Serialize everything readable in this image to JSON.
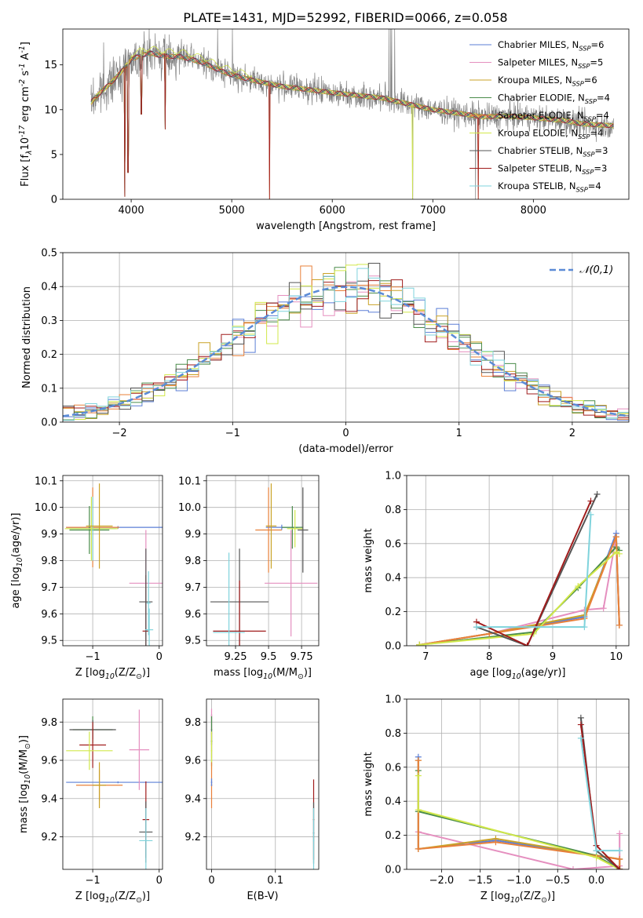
{
  "title": "PLATE=1431, MJD=52992, FIBERID=0066, z=0.058",
  "colors": [
    "#5b7fd6",
    "#e58fbf",
    "#c9a227",
    "#4a8c4a",
    "#e8803a",
    "#d2e84a",
    "#555555",
    "#a01c1c",
    "#7fd3dc"
  ],
  "chart_data": [
    {
      "id": "spectrum",
      "type": "line",
      "xlabel": "wavelength [Angstrom, rest frame]",
      "ylabel": "Flux [f$_\\lambda$10$^{-17}$ erg cm$^{-2}$ s$^{-1}$ A$^{-1}$]",
      "xlim": [
        3320,
        8950
      ],
      "ylim": [
        0,
        19
      ],
      "xticks": [
        4000,
        5000,
        6000,
        7000,
        8000
      ],
      "yticks": [
        0,
        5,
        10,
        15
      ],
      "grid": false,
      "legend_position": "top-right",
      "legend": [
        "Chabrier MILES, N$_{SSP}$=6",
        "Salpeter MILES, N$_{SSP}$=5",
        "Kroupa MILES, N$_{SSP}$=6",
        "Chabrier ELODIE, N$_{SSP}$=4",
        "Salpeter ELODIE, N$_{SSP}$=4",
        "Kroupa ELODIE, N$_{SSP}$=4",
        "Chabrier STELIB, N$_{SSP}$=3",
        "Salpeter STELIB, N$_{SSP}$=3",
        "Kroupa STELIB, N$_{SSP}$=4"
      ],
      "data_color": "#808080",
      "continuum": [
        [
          3600,
          10.8
        ],
        [
          3700,
          12.0
        ],
        [
          3800,
          13.0
        ],
        [
          3900,
          14.2
        ],
        [
          4000,
          15.6
        ],
        [
          4100,
          16.1
        ],
        [
          4200,
          16.3
        ],
        [
          4300,
          16.0
        ],
        [
          4500,
          15.9
        ],
        [
          4700,
          15.3
        ],
        [
          4900,
          14.3
        ],
        [
          5000,
          13.9
        ],
        [
          5200,
          13.3
        ],
        [
          5500,
          12.6
        ],
        [
          6000,
          11.9
        ],
        [
          6500,
          11.3
        ],
        [
          7000,
          10.0
        ],
        [
          7500,
          9.2
        ],
        [
          7700,
          9.3
        ],
        [
          8000,
          9.1
        ],
        [
          8300,
          8.8
        ],
        [
          8500,
          8.4
        ],
        [
          8800,
          8.2
        ]
      ],
      "data_noise_amp": 1.3,
      "model_dips": [
        [
          3934,
          0.3
        ],
        [
          3969,
          3.0
        ],
        [
          4101,
          9.5
        ],
        [
          4340,
          7.8
        ],
        [
          5375,
          0
        ],
        [
          7450,
          0
        ]
      ],
      "data_spikes": [
        [
          3727,
          17.5
        ],
        [
          4861,
          19
        ],
        [
          5007,
          19
        ],
        [
          6563,
          19
        ],
        [
          6583,
          19
        ],
        [
          6590,
          19
        ],
        [
          6620,
          19
        ],
        [
          5376,
          0
        ],
        [
          6800,
          0
        ],
        [
          7425,
          0
        ]
      ]
    },
    {
      "id": "residuals",
      "type": "step",
      "xlabel": "(data-model)/error",
      "ylabel": "Normed distribution",
      "xlim": [
        -2.5,
        2.5
      ],
      "ylim": [
        0,
        0.5
      ],
      "xticks": [
        -2,
        -1,
        0,
        1,
        2
      ],
      "yticks": [
        0.0,
        0.1,
        0.2,
        0.3,
        0.4,
        0.5
      ],
      "grid": true,
      "legend_position": "top-right",
      "normal_label": "$\\mathcal{N}(0,1)$",
      "normal_color": "#5b8bd6",
      "bin_width": 0.1
    },
    {
      "id": "age-vs-Z",
      "type": "errorbar",
      "xlabel": "Z [log$_{10}$(Z/Z$_\\odot$)]",
      "ylabel": "age  [log$_{10}$(age/yr)]",
      "xlim": [
        -1.45,
        0.05
      ],
      "ylim": [
        9.48,
        10.12
      ],
      "xticks": [
        -1,
        0
      ],
      "yticks": [
        9.5,
        9.6,
        9.7,
        9.8,
        9.9,
        10.0,
        10.1
      ],
      "grid": true,
      "points": [
        {
          "x": -0.62,
          "y": 9.925,
          "xe": 0.78,
          "ye": 0.005,
          "c": 0
        },
        {
          "x": -1.0,
          "y": 9.925,
          "xe": 0.4,
          "ye": 0.15,
          "c": 4
        },
        {
          "x": -1.05,
          "y": 9.915,
          "xe": 0.3,
          "ye": 0.09,
          "c": 3
        },
        {
          "x": -1.0,
          "y": 9.92,
          "xe": 0.35,
          "ye": 0.12,
          "c": 8
        },
        {
          "x": -1.02,
          "y": 9.92,
          "xe": 0.4,
          "ye": 0.12,
          "c": 5
        },
        {
          "x": -0.9,
          "y": 9.93,
          "xe": 0.2,
          "ye": 0.16,
          "c": 2
        },
        {
          "x": -0.2,
          "y": 9.715,
          "xe": 0.25,
          "ye": 0.2,
          "c": 1
        },
        {
          "x": -0.2,
          "y": 9.535,
          "xe": 0.05,
          "ye": 0.21,
          "c": 7
        },
        {
          "x": -0.2,
          "y": 9.645,
          "xe": 0.1,
          "ye": 0.2,
          "c": 6
        },
        {
          "x": -0.16,
          "y": 9.64,
          "xe": 0.03,
          "ye": 0.12,
          "c": 8
        },
        {
          "x": -0.15,
          "y": 9.54,
          "xe": 0.06,
          "ye": 0.08,
          "c": 8
        }
      ]
    },
    {
      "id": "age-vs-mass",
      "type": "errorbar",
      "xlabel": "mass [log$_{10}$(M/M$_\\odot$)]",
      "ylabel": "",
      "xlim": [
        9.03,
        9.88
      ],
      "ylim": [
        9.48,
        10.12
      ],
      "xticks": [
        9.25,
        9.5,
        9.75
      ],
      "yticks": [
        9.5,
        9.6,
        9.7,
        9.8,
        9.9,
        10.0,
        10.1
      ],
      "grid": true,
      "points": [
        {
          "x": 9.6,
          "y": 9.925,
          "xe": 0.12,
          "ye": 0.01,
          "c": 0
        },
        {
          "x": 9.5,
          "y": 9.915,
          "xe": 0.1,
          "ye": 0.16,
          "c": 4
        },
        {
          "x": 9.68,
          "y": 9.925,
          "xe": 0.08,
          "ye": 0.08,
          "c": 3
        },
        {
          "x": 9.7,
          "y": 9.92,
          "xe": 0.06,
          "ye": 0.07,
          "c": 5
        },
        {
          "x": 9.76,
          "y": 9.915,
          "xe": 0.04,
          "ye": 0.16,
          "c": 6
        },
        {
          "x": 9.52,
          "y": 9.93,
          "xe": 0.04,
          "ye": 0.16,
          "c": 2
        },
        {
          "x": 9.28,
          "y": 9.645,
          "xe": 0.22,
          "ye": 0.2,
          "c": 6
        },
        {
          "x": 9.28,
          "y": 9.535,
          "xe": 0.2,
          "ye": 0.19,
          "c": 7
        },
        {
          "x": 9.67,
          "y": 9.715,
          "xe": 0.2,
          "ye": 0.2,
          "c": 1
        },
        {
          "x": 9.2,
          "y": 9.53,
          "xe": 0.12,
          "ye": 0.3,
          "c": 8
        }
      ]
    },
    {
      "id": "weight-vs-age",
      "type": "line",
      "xlabel": "age  [log$_{10}$(age/yr)]",
      "ylabel": "mass weight",
      "xlim": [
        6.7,
        10.2
      ],
      "ylim": [
        0,
        1
      ],
      "xticks": [
        7,
        8,
        9,
        10
      ],
      "yticks": [
        0.0,
        0.2,
        0.4,
        0.6,
        0.8,
        1.0
      ],
      "grid": true,
      "series": [
        {
          "c": 0,
          "x": [
            6.9,
            8.0,
            9.5,
            10.0,
            10.05
          ],
          "y": [
            0.005,
            0.07,
            0.17,
            0.66,
            0.12
          ]
        },
        {
          "c": 1,
          "x": [
            6.9,
            8.0,
            9.5,
            9.8,
            10.0,
            10.05
          ],
          "y": [
            0.005,
            0.07,
            0.21,
            0.22,
            0.64,
            0.12
          ]
        },
        {
          "c": 2,
          "x": [
            6.9,
            8.0,
            9.5,
            10.0,
            10.05
          ],
          "y": [
            0.005,
            0.07,
            0.18,
            0.64,
            0.12
          ]
        },
        {
          "c": 3,
          "x": [
            6.9,
            8.7,
            9.4,
            10.0,
            10.05
          ],
          "y": [
            0.005,
            0.08,
            0.34,
            0.58,
            0.56
          ]
        },
        {
          "c": 4,
          "x": [
            6.9,
            8.0,
            9.5,
            10.0,
            10.05
          ],
          "y": [
            0.005,
            0.07,
            0.16,
            0.64,
            0.12
          ]
        },
        {
          "c": 5,
          "x": [
            6.9,
            8.7,
            9.4,
            10.0,
            10.05
          ],
          "y": [
            0.005,
            0.07,
            0.35,
            0.55,
            0.54
          ]
        },
        {
          "c": 6,
          "x": [
            7.8,
            8.6,
            9.7
          ],
          "y": [
            0.11,
            0.0,
            0.89
          ]
        },
        {
          "c": 7,
          "x": [
            7.8,
            8.6,
            9.6
          ],
          "y": [
            0.14,
            0.0,
            0.85
          ]
        },
        {
          "c": 8,
          "x": [
            7.8,
            9.5,
            9.6
          ],
          "y": [
            0.11,
            0.11,
            0.77
          ]
        }
      ]
    },
    {
      "id": "mass-vs-Z",
      "type": "errorbar",
      "xlabel": "Z [log$_{10}$(Z/Z$_\\odot$)]",
      "ylabel": "mass [log$_{10}$(M/M$_\\odot$)]",
      "xlim": [
        -1.45,
        0.05
      ],
      "ylim": [
        9.03,
        9.92
      ],
      "xticks": [
        -1,
        0
      ],
      "yticks": [
        9.2,
        9.4,
        9.6,
        9.8
      ],
      "grid": true,
      "points": [
        {
          "x": -0.62,
          "y": 9.485,
          "xe": 0.78,
          "ye": 0.005,
          "c": 0
        },
        {
          "x": -0.9,
          "y": 9.47,
          "xe": 0.35,
          "ye": 0.08,
          "c": 4
        },
        {
          "x": -1.0,
          "y": 9.76,
          "xe": 0.3,
          "ye": 0.07,
          "c": 3
        },
        {
          "x": -1.0,
          "y": 9.76,
          "xe": 0.35,
          "ye": 0.05,
          "c": 6
        },
        {
          "x": -1.0,
          "y": 9.68,
          "xe": 0.2,
          "ye": 0.12,
          "c": 7
        },
        {
          "x": -1.05,
          "y": 9.65,
          "xe": 0.35,
          "ye": 0.1,
          "c": 5
        },
        {
          "x": -0.9,
          "y": 9.47,
          "xe": 0.1,
          "ye": 0.12,
          "c": 2
        },
        {
          "x": -0.3,
          "y": 9.655,
          "xe": 0.15,
          "ye": 0.21,
          "c": 1
        },
        {
          "x": -0.2,
          "y": 9.29,
          "xe": 0.05,
          "ye": 0.2,
          "c": 7
        },
        {
          "x": -0.2,
          "y": 9.225,
          "xe": 0.1,
          "ye": 0.16,
          "c": 6
        },
        {
          "x": -0.2,
          "y": 9.18,
          "xe": 0.1,
          "ye": 0.17,
          "c": 8
        }
      ]
    },
    {
      "id": "mass-vs-EBV",
      "type": "errorbar",
      "xlabel": "E(B-V)",
      "ylabel": "",
      "xlim": [
        -0.008,
        0.168
      ],
      "ylim": [
        9.03,
        9.92
      ],
      "xticks": [
        0.0,
        0.1
      ],
      "yticks": [
        9.2,
        9.4,
        9.6,
        9.8
      ],
      "grid": true,
      "points": [
        {
          "x": 0.0,
          "y": 9.76,
          "xe": 0.001,
          "ye": 0.08,
          "c": 6
        },
        {
          "x": 0.0,
          "y": 9.74,
          "xe": 0.001,
          "ye": 0.13,
          "c": 1
        },
        {
          "x": 0.0,
          "y": 9.7,
          "xe": 0.001,
          "ye": 0.13,
          "c": 3
        },
        {
          "x": 0.0,
          "y": 9.65,
          "xe": 0.001,
          "ye": 0.1,
          "c": 5
        },
        {
          "x": 0.0,
          "y": 9.47,
          "xe": 0.001,
          "ye": 0.12,
          "c": 4
        },
        {
          "x": 0.0,
          "y": 9.485,
          "xe": 0.001,
          "ye": 0.02,
          "c": 0
        },
        {
          "x": 0.16,
          "y": 9.29,
          "xe": 0.001,
          "ye": 0.21,
          "c": 7
        },
        {
          "x": 0.16,
          "y": 9.22,
          "xe": 0.001,
          "ye": 0.16,
          "c": 6
        },
        {
          "x": 0.16,
          "y": 9.18,
          "xe": 0.001,
          "ye": 0.17,
          "c": 8
        }
      ]
    },
    {
      "id": "weight-vs-Z",
      "type": "line",
      "xlabel": "Z [log$_{10}$(Z/Z$_\\odot$)]",
      "ylabel": "mass weight",
      "xlim": [
        -2.45,
        0.42
      ],
      "ylim": [
        0,
        1
      ],
      "xticks": [
        -2.0,
        -1.5,
        -1.0,
        -0.5,
        0.0
      ],
      "yticks": [
        0.0,
        0.2,
        0.4,
        0.6,
        0.8,
        1.0
      ],
      "grid": true,
      "series": [
        {
          "c": 0,
          "x": [
            -2.3,
            -2.3,
            -1.3,
            0.3,
            0.3
          ],
          "y": [
            0.66,
            0.12,
            0.17,
            0.06,
            0.0
          ]
        },
        {
          "c": 1,
          "x": [
            -2.3,
            -0.3,
            0.3,
            0.3
          ],
          "y": [
            0.22,
            0.0,
            0.02,
            0.21
          ]
        },
        {
          "c": 2,
          "x": [
            -2.3,
            -2.3,
            -1.3,
            0.3,
            0.3
          ],
          "y": [
            0.64,
            0.12,
            0.18,
            0.06,
            0.0
          ]
        },
        {
          "c": 3,
          "x": [
            -2.3,
            -2.3,
            0.0,
            0.3
          ],
          "y": [
            0.58,
            0.34,
            0.08,
            0.0
          ]
        },
        {
          "c": 4,
          "x": [
            -2.3,
            -2.3,
            -1.3,
            0.3,
            0.3
          ],
          "y": [
            0.64,
            0.12,
            0.16,
            0.06,
            0.0
          ]
        },
        {
          "c": 5,
          "x": [
            -2.3,
            -2.3,
            0.0,
            0.3
          ],
          "y": [
            0.55,
            0.35,
            0.07,
            0.0
          ]
        },
        {
          "c": 6,
          "x": [
            -0.2,
            0.0,
            0.3
          ],
          "y": [
            0.89,
            0.11,
            0.0
          ]
        },
        {
          "c": 7,
          "x": [
            -0.2,
            0.0,
            0.3
          ],
          "y": [
            0.85,
            0.14,
            0.0
          ]
        },
        {
          "c": 8,
          "x": [
            -0.2,
            0.0,
            0.3
          ],
          "y": [
            0.77,
            0.11,
            0.11
          ]
        }
      ]
    }
  ]
}
